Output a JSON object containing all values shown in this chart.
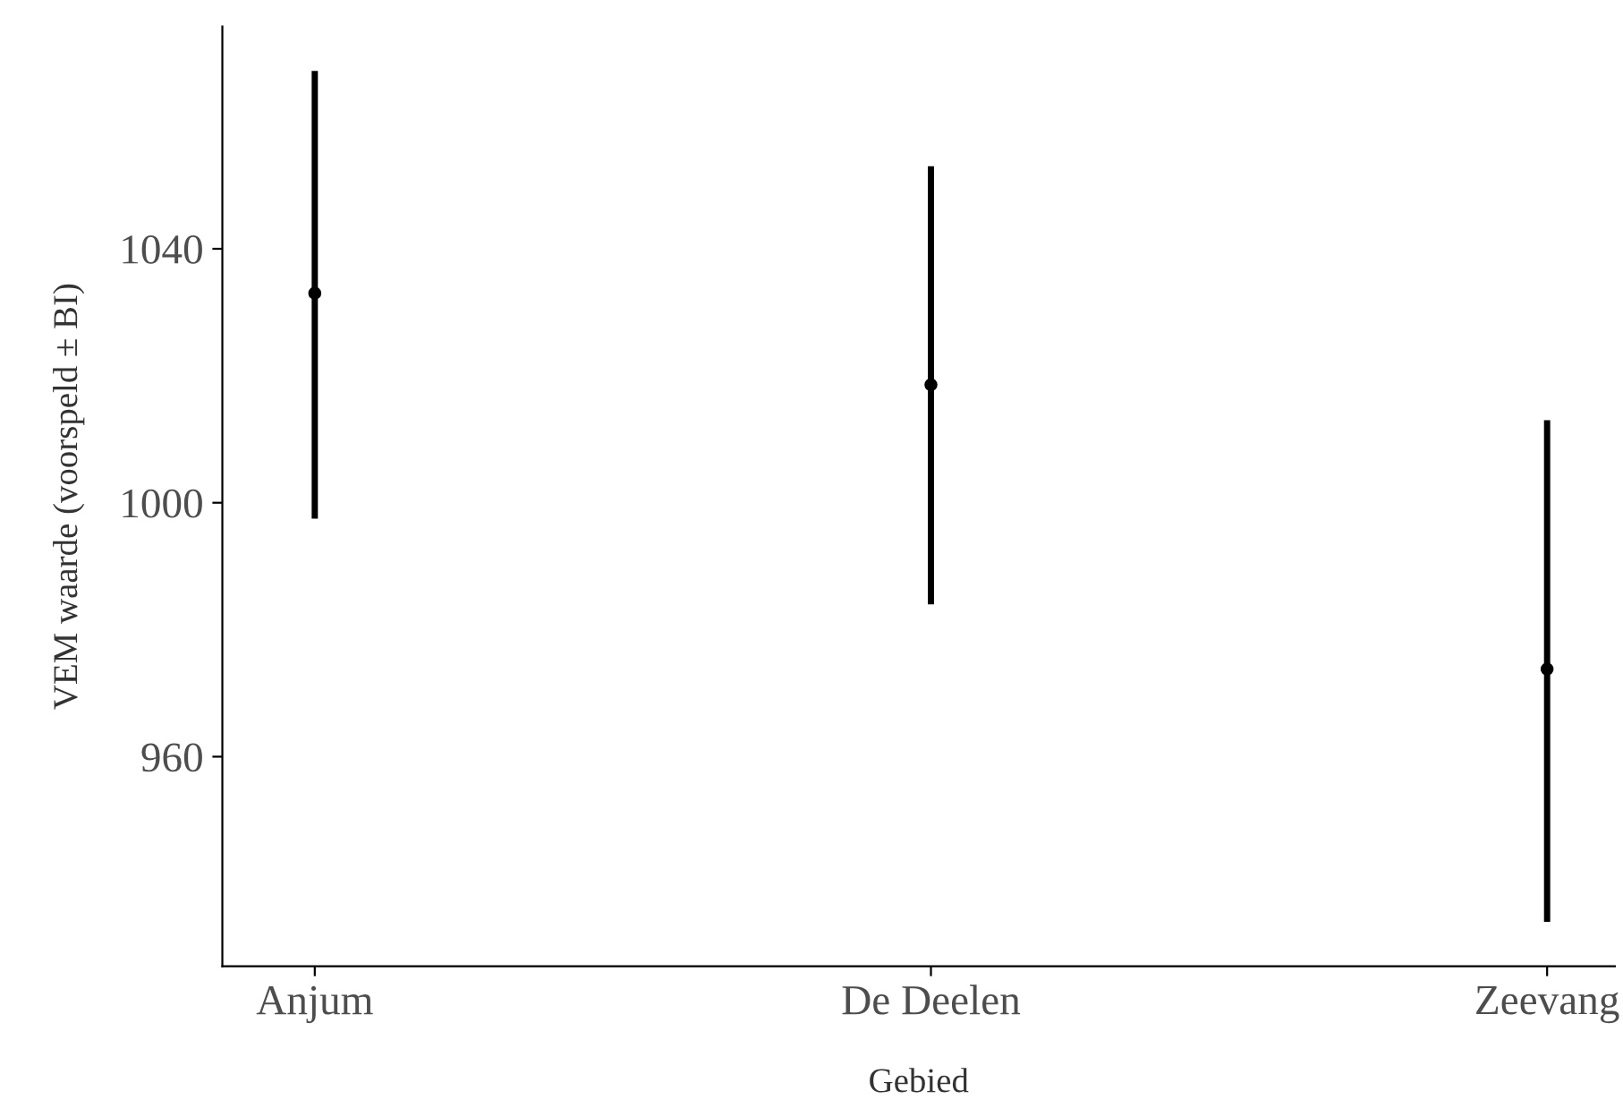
{
  "chart_data": {
    "type": "scatter",
    "xlabel": "Gebied",
    "ylabel": "VEM waarde (voorspeld ± BI)",
    "categories": [
      "Anjum",
      "De Deelen",
      "Zeevang"
    ],
    "values": [
      1033,
      1018.6,
      973.8
    ],
    "errors": [
      [
        997.5,
        1068
      ],
      [
        984,
        1053
      ],
      [
        934,
        1013
      ]
    ],
    "color": "#000000",
    "marker": "circle",
    "grid": false,
    "legend": false,
    "ylim": [
      927,
      1075
    ],
    "yticks": [
      960,
      1000,
      1040
    ]
  }
}
